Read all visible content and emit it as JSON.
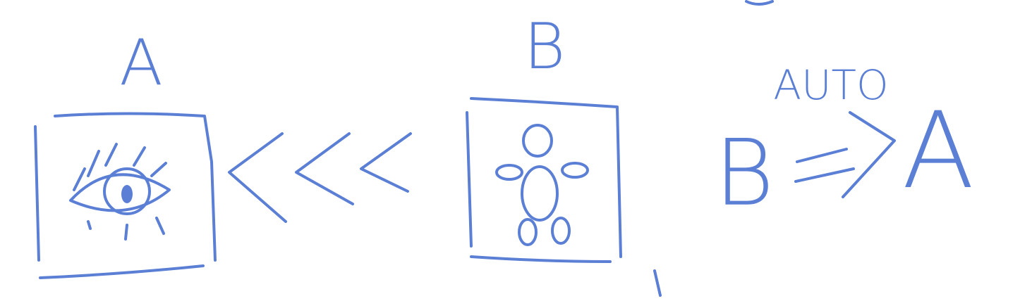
{
  "nodes": [
    {
      "label": "A"
    },
    {
      "label": "B"
    }
  ],
  "rule": {
    "from": "B",
    "to": "A",
    "label": "AUTO"
  }
}
